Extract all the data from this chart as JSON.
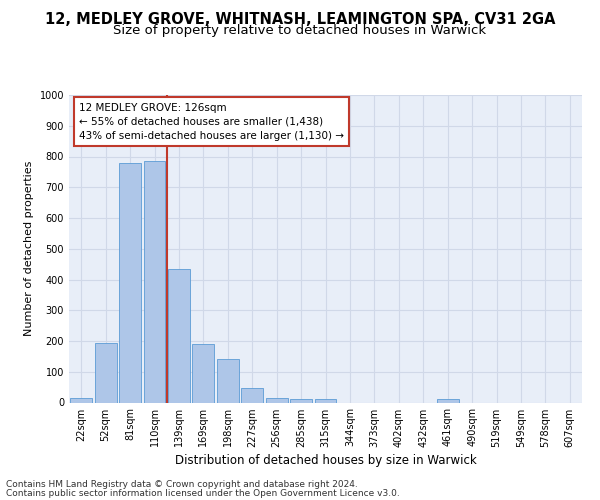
{
  "title1": "12, MEDLEY GROVE, WHITNASH, LEAMINGTON SPA, CV31 2GA",
  "title2": "Size of property relative to detached houses in Warwick",
  "xlabel": "Distribution of detached houses by size in Warwick",
  "ylabel": "Number of detached properties",
  "footer1": "Contains HM Land Registry data © Crown copyright and database right 2024.",
  "footer2": "Contains public sector information licensed under the Open Government Licence v3.0.",
  "bar_labels": [
    "22sqm",
    "52sqm",
    "81sqm",
    "110sqm",
    "139sqm",
    "169sqm",
    "198sqm",
    "227sqm",
    "256sqm",
    "285sqm",
    "315sqm",
    "344sqm",
    "373sqm",
    "402sqm",
    "432sqm",
    "461sqm",
    "490sqm",
    "519sqm",
    "549sqm",
    "578sqm",
    "607sqm"
  ],
  "bar_values": [
    15,
    195,
    780,
    785,
    435,
    190,
    140,
    48,
    15,
    10,
    10,
    0,
    0,
    0,
    0,
    12,
    0,
    0,
    0,
    0,
    0
  ],
  "bar_color": "#aec6e8",
  "bar_edge_color": "#5b9bd5",
  "annotation_box_text": "12 MEDLEY GROVE: 126sqm\n← 55% of detached houses are smaller (1,438)\n43% of semi-detached houses are larger (1,130) →",
  "vline_color": "#c0392b",
  "box_edge_color": "#c0392b",
  "ylim": [
    0,
    1000
  ],
  "yticks": [
    0,
    100,
    200,
    300,
    400,
    500,
    600,
    700,
    800,
    900,
    1000
  ],
  "grid_color": "#d0d8e8",
  "background_color": "#e8eef8",
  "fig_background": "#ffffff",
  "title1_fontsize": 10.5,
  "title2_fontsize": 9.5,
  "xlabel_fontsize": 8.5,
  "ylabel_fontsize": 8,
  "tick_fontsize": 7,
  "annotation_fontsize": 7.5,
  "footer_fontsize": 6.5
}
